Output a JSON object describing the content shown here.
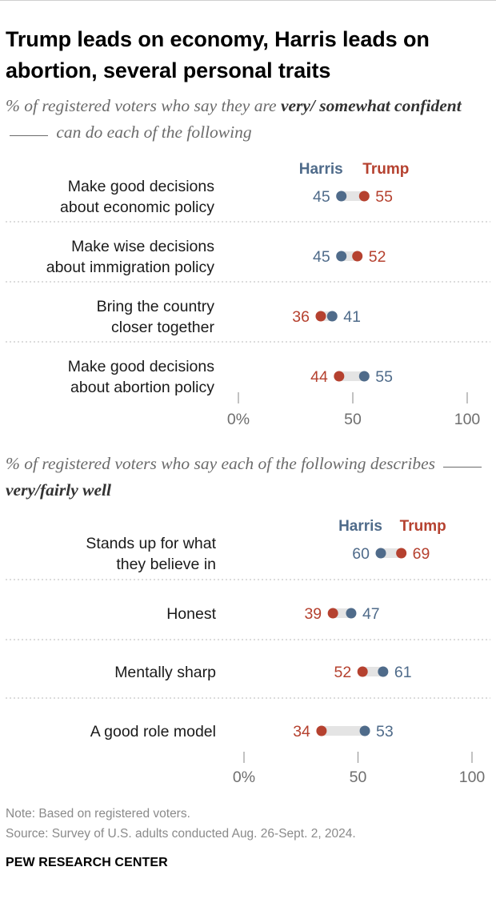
{
  "title": "Trump leads on economy, Harris leads on abortion, several personal traits",
  "colors": {
    "harris": "#4f6b8a",
    "trump": "#b5412f",
    "bar": "#e4e4e4",
    "divider": "#c8c8c8"
  },
  "legend": {
    "harris": "Harris",
    "trump": "Trump"
  },
  "panel1": {
    "subtitle": {
      "pre": "% of registered voters who say they are ",
      "bold": "very/ somewhat confident",
      "post": " can do each of the following"
    }
  },
  "panel2": {
    "subtitle": {
      "pre": "% of registered voters who say each of the following describes ",
      "bold": "very/fairly well",
      "post": ""
    }
  },
  "chart_data": [
    {
      "type": "dot",
      "categories": [
        "Make good decisions about economic policy",
        "Make wise decisions about immigration policy",
        "Bring the country closer together",
        "Make good decisions about abortion policy"
      ],
      "series": [
        {
          "name": "Harris",
          "values": [
            45,
            45,
            41,
            55
          ]
        },
        {
          "name": "Trump",
          "values": [
            55,
            52,
            36,
            44
          ]
        }
      ],
      "xlim": [
        0,
        100
      ],
      "xticks": [
        "0%",
        "50",
        "100"
      ]
    },
    {
      "type": "dot",
      "categories": [
        "Stands up for what they believe in",
        "Honest",
        "Mentally sharp",
        "A good role model"
      ],
      "series": [
        {
          "name": "Harris",
          "values": [
            60,
            47,
            61,
            53
          ]
        },
        {
          "name": "Trump",
          "values": [
            69,
            39,
            52,
            34
          ]
        }
      ],
      "xlim": [
        0,
        100
      ],
      "xticks": [
        "0%",
        "50",
        "100"
      ]
    }
  ],
  "note": "Note: Based on registered voters.",
  "source": "Source: Survey of U.S. adults conducted Aug. 26-Sept. 2, 2024.",
  "brand": "PEW RESEARCH CENTER"
}
